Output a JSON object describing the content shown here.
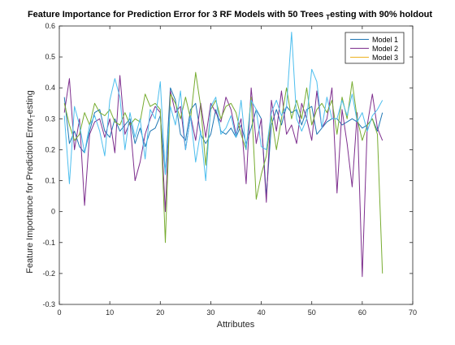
{
  "chart_data": {
    "type": "line",
    "title_main": "Feature Importance for Prediction Error for 3 RF Models with 50 Trees",
    "title_sub": "T",
    "title_tail": "esting with 90% holdout",
    "xlabel": "Attributes",
    "ylabel_main": "Feature Importance for Prediction Error",
    "ylabel_sub": "T",
    "ylabel_tail": "esting",
    "xlim": [
      0,
      70
    ],
    "ylim": [
      -0.3,
      0.6
    ],
    "xticks": [
      0,
      10,
      20,
      30,
      40,
      50,
      60,
      70
    ],
    "yticks": [
      -0.3,
      -0.2,
      -0.1,
      0,
      0.1,
      0.2,
      0.3,
      0.4,
      0.5,
      0.6
    ],
    "ytick_labels": [
      "-0.3",
      "-0.2",
      "-0.1",
      "0",
      "0.1",
      "0.2",
      "0.3",
      "0.4",
      "0.5",
      "0.6"
    ],
    "grid": false,
    "legend_position": "top-right",
    "x": [
      1,
      2,
      3,
      4,
      5,
      6,
      7,
      8,
      9,
      10,
      11,
      12,
      13,
      14,
      15,
      16,
      17,
      18,
      19,
      20,
      21,
      22,
      23,
      24,
      25,
      26,
      27,
      28,
      29,
      30,
      31,
      32,
      33,
      34,
      35,
      36,
      37,
      38,
      39,
      40,
      41,
      42,
      43,
      44,
      45,
      46,
      47,
      48,
      49,
      50,
      51,
      52,
      53,
      54,
      55,
      56,
      57,
      58,
      59,
      60,
      61,
      62,
      63,
      64
    ],
    "series": [
      {
        "name": "Model 1",
        "color": "#1f77b4",
        "values": [
          0.37,
          0.22,
          0.26,
          0.21,
          0.19,
          0.26,
          0.32,
          0.33,
          0.26,
          0.24,
          0.3,
          0.26,
          0.28,
          0.3,
          0.22,
          0.27,
          0.21,
          0.26,
          0.27,
          0.31,
          0.12,
          0.4,
          0.36,
          0.25,
          0.23,
          0.33,
          0.35,
          0.25,
          0.22,
          0.25,
          0.33,
          0.26,
          0.25,
          0.27,
          0.24,
          0.28,
          0.22,
          0.27,
          0.33,
          0.3,
          0.05,
          0.28,
          0.33,
          0.28,
          0.34,
          0.32,
          0.33,
          0.28,
          0.33,
          0.34,
          0.25,
          0.27,
          0.29,
          0.3,
          0.3,
          0.28,
          0.29,
          0.3,
          0.29,
          0.27,
          0.28,
          0.3,
          0.26,
          0.32
        ]
      },
      {
        "name": "Model 2",
        "color": "#7e2f8e",
        "values": [
          0.32,
          0.43,
          0.2,
          0.3,
          0.02,
          0.25,
          0.29,
          0.3,
          0.24,
          0.3,
          0.19,
          0.44,
          0.25,
          0.29,
          0.1,
          0.16,
          0.25,
          0.3,
          0.34,
          0.32,
          0.0,
          0.39,
          0.32,
          0.34,
          0.2,
          0.31,
          0.23,
          0.35,
          0.24,
          0.35,
          0.32,
          0.29,
          0.37,
          0.33,
          0.25,
          0.3,
          0.09,
          0.4,
          0.22,
          0.3,
          0.03,
          0.36,
          0.26,
          0.39,
          0.25,
          0.28,
          0.22,
          0.35,
          0.3,
          0.23,
          0.39,
          0.27,
          0.3,
          0.4,
          0.06,
          0.33,
          0.22,
          0.08,
          0.32,
          -0.21,
          0.28,
          0.38,
          0.27,
          0.23
        ]
      },
      {
        "name": "Model 3",
        "color": "#77ac30",
        "values": [
          0.35,
          0.28,
          0.23,
          0.25,
          0.32,
          0.28,
          0.35,
          0.32,
          0.31,
          0.33,
          0.29,
          0.28,
          0.32,
          0.28,
          0.3,
          0.29,
          0.38,
          0.34,
          0.35,
          0.33,
          -0.1,
          0.38,
          0.35,
          0.3,
          0.37,
          0.3,
          0.45,
          0.34,
          0.15,
          0.33,
          0.36,
          0.3,
          0.34,
          0.35,
          0.32,
          0.25,
          0.2,
          0.37,
          0.04,
          0.12,
          0.18,
          0.31,
          0.2,
          0.3,
          0.4,
          0.3,
          0.36,
          0.3,
          0.4,
          0.28,
          0.33,
          0.35,
          0.32,
          0.36,
          0.25,
          0.37,
          0.3,
          0.42,
          0.3,
          0.23,
          0.28,
          0.3,
          0.25,
          -0.2
        ]
      },
      {
        "name": "",
        "color": "#4dbeee",
        "values": [
          0.31,
          0.09,
          0.34,
          0.28,
          0.19,
          0.28,
          0.31,
          0.26,
          0.18,
          0.36,
          0.43,
          0.37,
          0.2,
          0.32,
          0.24,
          0.3,
          0.17,
          0.33,
          0.3,
          0.42,
          0.12,
          0.34,
          0.28,
          0.39,
          0.2,
          0.31,
          0.16,
          0.26,
          0.1,
          0.34,
          0.37,
          0.25,
          0.27,
          0.31,
          0.24,
          0.36,
          0.2,
          0.36,
          0.33,
          0.21,
          0.2,
          0.32,
          0.36,
          0.31,
          0.34,
          0.58,
          0.3,
          0.26,
          0.3,
          0.46,
          0.42,
          0.27,
          0.37,
          0.3,
          0.3,
          0.36,
          0.31,
          0.38,
          0.29,
          0.32,
          0.26,
          0.31,
          0.33,
          0.36
        ]
      }
    ]
  }
}
